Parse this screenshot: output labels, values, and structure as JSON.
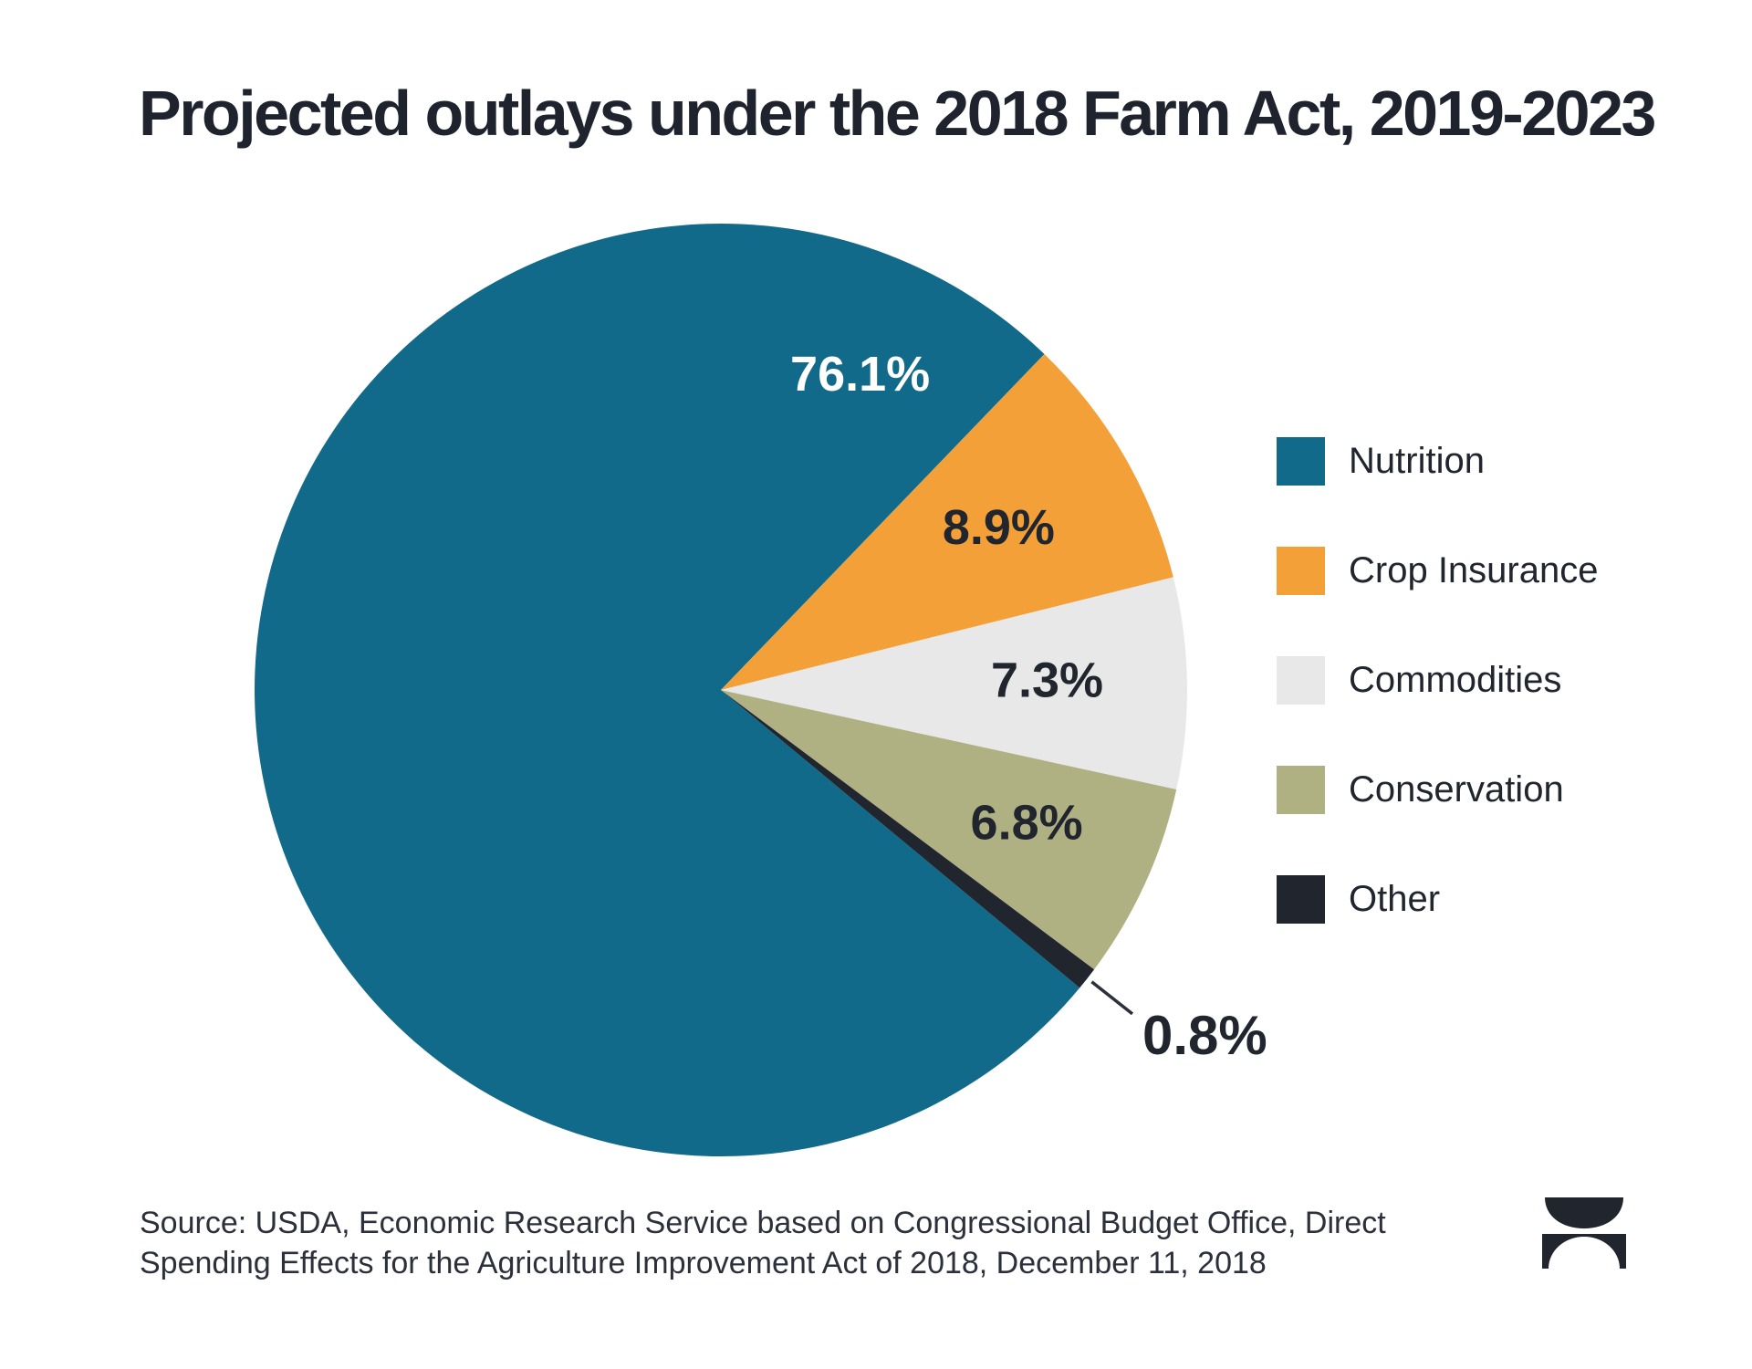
{
  "page": {
    "background": "#ffffff",
    "text_color": "#1e232e"
  },
  "chart_data": {
    "type": "pie",
    "title": "Projected outlays under the 2018 Farm Act, 2019-2023",
    "legend_position": "right",
    "start_angle_deg": -39.7,
    "direction": "clockwise",
    "slices": [
      {
        "label": "Nutrition",
        "value": 76.1,
        "display": "76.1%",
        "color": "#126a8b",
        "label_color": "#ffffff"
      },
      {
        "label": "Crop Insurance",
        "value": 8.9,
        "display": "8.9%",
        "color": "#f3a039",
        "label_color": "#20252e"
      },
      {
        "label": "Commodities",
        "value": 7.3,
        "display": "7.3%",
        "color": "#e8e8e9",
        "label_color": "#20252e"
      },
      {
        "label": "Conservation",
        "value": 6.8,
        "display": "6.8%",
        "color": "#b0b183",
        "label_color": "#20252e"
      },
      {
        "label": "Other",
        "value": 0.8,
        "display": "0.8%",
        "color": "#20252e",
        "label_color": "#20252e",
        "label_outside": true
      }
    ]
  },
  "source": {
    "line1": "Source: USDA, Economic Research Service based on Congressional Budget Office, Direct",
    "line2": "Spending Effects for the Agriculture Improvement Act of 2018, December 11, 2018"
  },
  "branding": {
    "logo_icon": "usafacts-mark",
    "logo_color": "#20252e",
    "leader_line_color": "#2b303b"
  }
}
